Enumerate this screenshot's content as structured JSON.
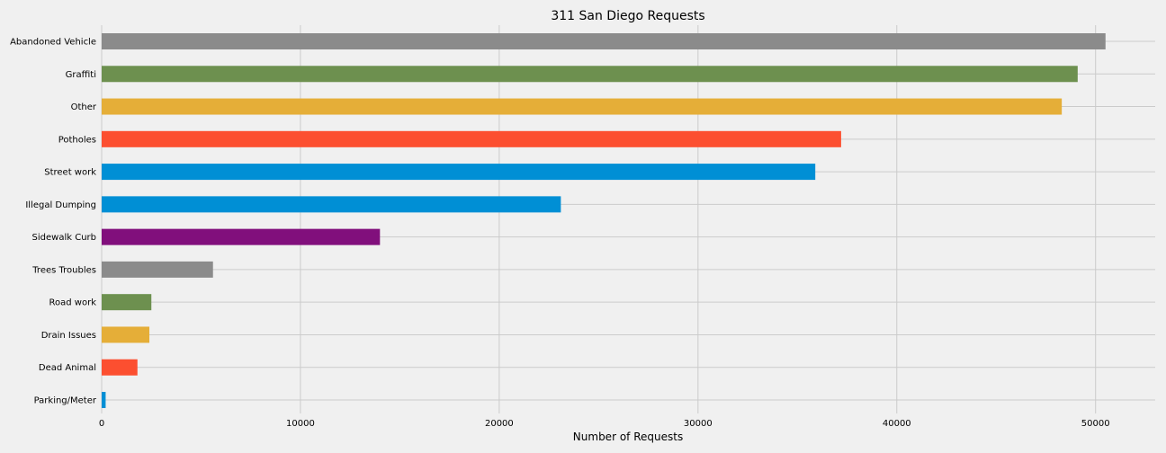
{
  "chart_data": {
    "type": "bar",
    "orientation": "horizontal",
    "title": "311 San Diego Requests",
    "xlabel": "Number of Requests",
    "ylabel": "",
    "xlim": [
      0,
      53000
    ],
    "xticks": [
      "0",
      "10000",
      "20000",
      "30000",
      "40000",
      "50000"
    ],
    "grid": true,
    "categories": [
      "Abandoned Vehicle",
      "Graffiti",
      "Other",
      "Potholes",
      "Street work",
      "Illegal Dumping",
      "Sidewalk Curb",
      "Trees Troubles",
      "Road work",
      "Drain Issues",
      "Dead Animal",
      "Parking/Meter"
    ],
    "values": [
      50500,
      49100,
      48300,
      37200,
      35900,
      23100,
      14000,
      5600,
      2500,
      2400,
      1800,
      200
    ],
    "colors": [
      "#8b8b8b",
      "#6d904f",
      "#e5ae38",
      "#fc4f30",
      "#008fd5",
      "#008fd5",
      "#810f7c",
      "#8b8b8b",
      "#6d904f",
      "#e5ae38",
      "#fc4f30",
      "#008fd5"
    ]
  }
}
